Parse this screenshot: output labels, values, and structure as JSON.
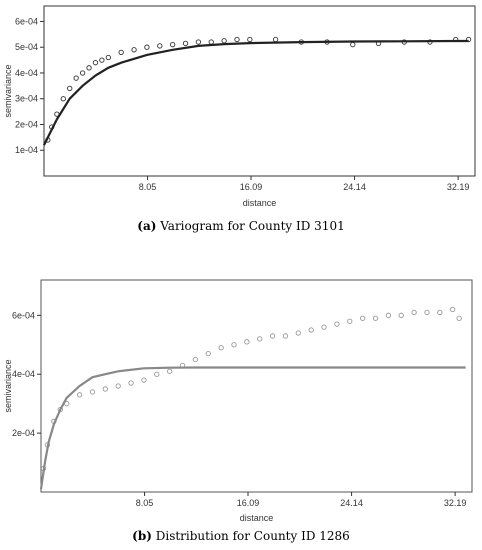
{
  "chart_data": [
    {
      "type": "scatter",
      "caption_tag": "(a)",
      "caption_text": " Variogram for County ID 3101",
      "xlabel": "distance",
      "ylabel": "semivariance",
      "xlim": [
        0,
        33.5
      ],
      "ylim": [
        0,
        0.00066
      ],
      "xticks": [
        8.05,
        16.09,
        24.14,
        32.19
      ],
      "xtick_labels": [
        "8.05",
        "16.09",
        "24.14",
        "32.19"
      ],
      "yticks": [
        0.0001,
        0.0002,
        0.0003,
        0.0004,
        0.0005,
        0.0006
      ],
      "ytick_labels": [
        "1e-04",
        "2e-04",
        "3e-04",
        "4e-04",
        "5e-04",
        "6e-04"
      ],
      "marker_color": "#333333",
      "line_color": "#222222",
      "series": [
        {
          "kind": "points",
          "x": [
            0.3,
            0.6,
            1.0,
            1.5,
            2.0,
            2.5,
            3.0,
            3.5,
            4.0,
            4.5,
            5.0,
            6.0,
            7.0,
            8.0,
            9.0,
            10.0,
            11.0,
            12.0,
            13.0,
            14.0,
            15.0,
            16.0,
            18.0,
            20.0,
            22.0,
            24.0,
            26.0,
            28.0,
            30.0,
            32.0,
            33.0
          ],
          "y": [
            0.00014,
            0.00019,
            0.00024,
            0.0003,
            0.00034,
            0.00038,
            0.0004,
            0.00042,
            0.00044,
            0.00045,
            0.00046,
            0.00048,
            0.00049,
            0.0005,
            0.000505,
            0.00051,
            0.000515,
            0.00052,
            0.00052,
            0.000525,
            0.00053,
            0.00053,
            0.00053,
            0.00052,
            0.00052,
            0.00051,
            0.000515,
            0.00052,
            0.00052,
            0.00053,
            0.00053
          ]
        },
        {
          "kind": "fit",
          "x": [
            0.0,
            0.5,
            1.0,
            1.5,
            2.0,
            3.0,
            4.0,
            5.0,
            6.0,
            7.0,
            8.0,
            10.0,
            12.0,
            14.0,
            16.0,
            20.0,
            24.0,
            28.0,
            32.0,
            33.0
          ],
          "y": [
            0.00012,
            0.00017,
            0.00022,
            0.00026,
            0.0003,
            0.00035,
            0.00039,
            0.00042,
            0.00044,
            0.000455,
            0.00047,
            0.00049,
            0.000505,
            0.000512,
            0.000516,
            0.00052,
            0.000522,
            0.000523,
            0.000524,
            0.000524
          ]
        }
      ]
    },
    {
      "type": "scatter",
      "caption_tag": "(b)",
      "caption_text": " Distribution for County ID 1286",
      "xlabel": "distance",
      "ylabel": "semivariance",
      "xlim": [
        0,
        33.5
      ],
      "ylim": [
        0,
        0.00072
      ],
      "xticks": [
        8.05,
        16.09,
        24.14,
        32.19
      ],
      "xtick_labels": [
        "8.05",
        "16.09",
        "24.14",
        "32.19"
      ],
      "yticks": [
        0.0002,
        0.0004,
        0.0006
      ],
      "ytick_labels": [
        "2e-04",
        "4e-04",
        "6e-04"
      ],
      "marker_color": "#999999",
      "line_color": "#888888",
      "series": [
        {
          "kind": "points",
          "x": [
            0.2,
            0.5,
            1.0,
            1.5,
            2.0,
            3.0,
            4.0,
            5.0,
            6.0,
            7.0,
            8.0,
            9.0,
            10.0,
            11.0,
            12.0,
            13.0,
            14.0,
            15.0,
            16.0,
            17.0,
            18.0,
            19.0,
            20.0,
            21.0,
            22.0,
            23.0,
            24.0,
            25.0,
            26.0,
            27.0,
            28.0,
            29.0,
            30.0,
            31.0,
            32.0,
            32.5
          ],
          "y": [
            8e-05,
            0.00016,
            0.00024,
            0.00028,
            0.0003,
            0.00033,
            0.00034,
            0.00035,
            0.00036,
            0.00037,
            0.00038,
            0.0004,
            0.00041,
            0.00043,
            0.00045,
            0.00047,
            0.00049,
            0.0005,
            0.00051,
            0.00052,
            0.00053,
            0.00053,
            0.00054,
            0.00055,
            0.00056,
            0.00057,
            0.00058,
            0.00059,
            0.00059,
            0.0006,
            0.0006,
            0.00061,
            0.00061,
            0.00061,
            0.00062,
            0.00059
          ]
        },
        {
          "kind": "fit",
          "x": [
            0.0,
            0.3,
            0.6,
            1.0,
            1.5,
            2.0,
            3.0,
            4.0,
            5.0,
            6.0,
            8.0,
            10.0,
            12.0,
            14.0,
            16.0,
            20.0,
            24.0,
            28.0,
            32.0,
            33.0
          ],
          "y": [
            1e-05,
            0.0001,
            0.00017,
            0.00023,
            0.00028,
            0.00032,
            0.00036,
            0.00039,
            0.0004,
            0.00041,
            0.00042,
            0.000422,
            0.000423,
            0.000423,
            0.000423,
            0.000423,
            0.000423,
            0.000423,
            0.000423,
            0.000423
          ]
        }
      ]
    }
  ]
}
